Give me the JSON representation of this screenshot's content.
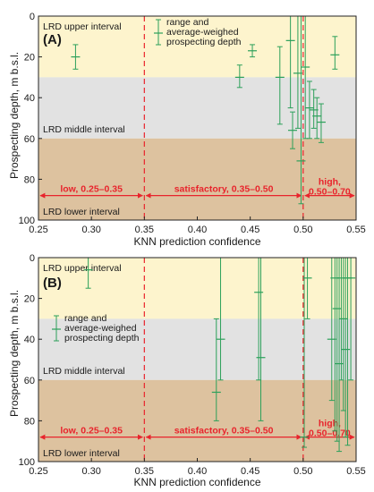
{
  "figure": {
    "x_axis_label": "KNN prediction confidence",
    "y_axis_label": "Prospecting depth, m b.s.l."
  },
  "chart_data": [
    {
      "panel_label": "(A)",
      "type": "errorbar",
      "xlabel": "KNN prediction confidence",
      "ylabel": "Prospecting depth, m b.s.l.",
      "xlim": [
        0.25,
        0.55
      ],
      "ylim": [
        0,
        100
      ],
      "y_inverted": true,
      "xticks": [
        "0.25",
        "0.30",
        "0.35",
        "0.40",
        "0.45",
        "0.50",
        "0.55"
      ],
      "yticks": [
        "0",
        "20",
        "40",
        "60",
        "80",
        "100"
      ],
      "bands": [
        {
          "label": "LRD upper interval",
          "from": 0,
          "to": 30,
          "color": "#fdf4cd"
        },
        {
          "label": "LRD middle interval",
          "from": 30,
          "to": 60,
          "color": "#e2e2e2"
        },
        {
          "label": "LRD lower interval",
          "from": 60,
          "to": 100,
          "color": "#ddc29f"
        }
      ],
      "thresholds": [
        0.35,
        0.5
      ],
      "confidence_ranges": [
        {
          "label": "low, 0.25–0.35",
          "from": 0.25,
          "to": 0.35
        },
        {
          "label": "satisfactory, 0.35–0.50",
          "from": 0.35,
          "to": 0.5
        },
        {
          "label": "high, 0.50–0.70",
          "from": 0.5,
          "to": 0.55
        }
      ],
      "legend": {
        "text": [
          "range and",
          "average-weighed",
          "prospecting depth"
        ],
        "position": "top-center"
      },
      "points": [
        {
          "x": 0.285,
          "low": 14,
          "high": 26,
          "mean": 20
        },
        {
          "x": 0.44,
          "low": 24,
          "high": 35,
          "mean": 30
        },
        {
          "x": 0.452,
          "low": 14,
          "high": 20,
          "mean": 17
        },
        {
          "x": 0.478,
          "low": 15,
          "high": 53,
          "mean": 30
        },
        {
          "x": 0.488,
          "low": 0,
          "high": 45,
          "mean": 12
        },
        {
          "x": 0.49,
          "low": 47,
          "high": 65,
          "mean": 56
        },
        {
          "x": 0.495,
          "low": 0,
          "high": 55,
          "mean": 28
        },
        {
          "x": 0.498,
          "low": 0,
          "high": 92,
          "mean": 71
        },
        {
          "x": 0.502,
          "low": 0,
          "high": 60,
          "mean": 25
        },
        {
          "x": 0.506,
          "low": 32,
          "high": 60,
          "mean": 45
        },
        {
          "x": 0.51,
          "low": 36,
          "high": 55,
          "mean": 46
        },
        {
          "x": 0.513,
          "low": 40,
          "high": 60,
          "mean": 49
        },
        {
          "x": 0.517,
          "low": 43,
          "high": 62,
          "mean": 52
        },
        {
          "x": 0.53,
          "low": 10,
          "high": 26,
          "mean": 19
        }
      ]
    },
    {
      "panel_label": "(B)",
      "type": "errorbar",
      "xlabel": "KNN prediction confidence",
      "ylabel": "Prospecting depth, m b.s.l.",
      "xlim": [
        0.25,
        0.55
      ],
      "ylim": [
        0,
        100
      ],
      "y_inverted": true,
      "xticks": [
        "0.25",
        "0.30",
        "0.35",
        "0.40",
        "0.45",
        "0.50",
        "0.55"
      ],
      "yticks": [
        "0",
        "20",
        "40",
        "60",
        "80",
        "100"
      ],
      "bands": [
        {
          "label": "LRD upper interval",
          "from": 0,
          "to": 30,
          "color": "#fdf4cd"
        },
        {
          "label": "LRD middle interval",
          "from": 30,
          "to": 60,
          "color": "#e2e2e2"
        },
        {
          "label": "LRD lower interval",
          "from": 60,
          "to": 100,
          "color": "#ddc29f"
        }
      ],
      "thresholds": [
        0.35,
        0.5
      ],
      "confidence_ranges": [
        {
          "label": "low, 0.25–0.35",
          "from": 0.25,
          "to": 0.35
        },
        {
          "label": "satisfactory, 0.35–0.50",
          "from": 0.35,
          "to": 0.5
        },
        {
          "label": "high, 0.50–0.70",
          "from": 0.5,
          "to": 0.55
        }
      ],
      "legend": {
        "text": [
          "range and",
          "average-weighed",
          "prospecting depth"
        ],
        "position": "center-left"
      },
      "points": [
        {
          "x": 0.297,
          "low": 0,
          "high": 15,
          "mean": 6
        },
        {
          "x": 0.418,
          "low": 30,
          "high": 80,
          "mean": 66
        },
        {
          "x": 0.422,
          "low": 0,
          "high": 60,
          "mean": 40
        },
        {
          "x": 0.458,
          "low": 0,
          "high": 60,
          "mean": 17
        },
        {
          "x": 0.46,
          "low": 0,
          "high": 80,
          "mean": 49
        },
        {
          "x": 0.501,
          "low": 0,
          "high": 93,
          "mean": 88
        },
        {
          "x": 0.504,
          "low": 0,
          "high": 30,
          "mean": 10
        },
        {
          "x": 0.527,
          "low": 0,
          "high": 70,
          "mean": 40
        },
        {
          "x": 0.53,
          "low": 0,
          "high": 85,
          "mean": 10
        },
        {
          "x": 0.532,
          "low": 0,
          "high": 90,
          "mean": 25
        },
        {
          "x": 0.534,
          "low": 0,
          "high": 95,
          "mean": 52
        },
        {
          "x": 0.536,
          "low": 0,
          "high": 60,
          "mean": 10
        },
        {
          "x": 0.538,
          "low": 0,
          "high": 75,
          "mean": 30
        },
        {
          "x": 0.54,
          "low": 0,
          "high": 88,
          "mean": 45
        },
        {
          "x": 0.542,
          "low": 0,
          "high": 92,
          "mean": 10
        },
        {
          "x": 0.545,
          "low": 0,
          "high": 60,
          "mean": 10
        }
      ]
    }
  ],
  "style": {
    "series_color": "#2ca05a",
    "threshold_color": "#e8242c",
    "range_arrow_color": "#e8242c",
    "axis_color": "#222222",
    "text_color": "#1a1a1a"
  }
}
